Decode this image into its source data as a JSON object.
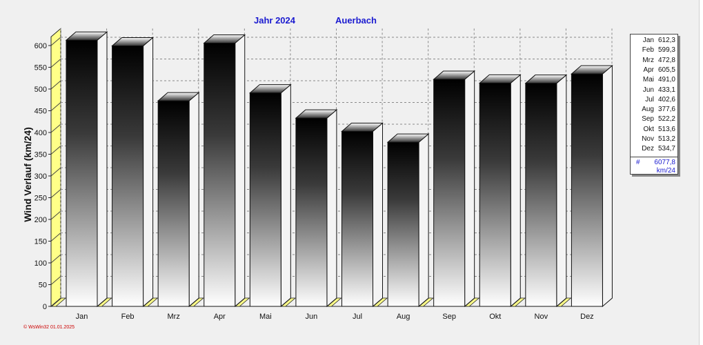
{
  "header": {
    "title_year": "Jahr  2024",
    "title_station": "Auerbach"
  },
  "footer": {
    "text": "© WsWin32  01.01.2025"
  },
  "chart_data": {
    "type": "bar",
    "title": "Jahr  2024",
    "subtitle": "Auerbach",
    "ylabel": "Wind Verlauf  (km/24)",
    "xlabel": "",
    "ylim": [
      0,
      620
    ],
    "yticks": [
      0,
      50,
      100,
      150,
      200,
      250,
      300,
      350,
      400,
      450,
      500,
      550,
      600
    ],
    "grid": true,
    "categories": [
      "Jan",
      "Feb",
      "Mrz",
      "Apr",
      "Mai",
      "Jun",
      "Jul",
      "Aug",
      "Sep",
      "Okt",
      "Nov",
      "Dez"
    ],
    "values": [
      612.3,
      599.3,
      472.8,
      605.5,
      491.0,
      433.1,
      402.6,
      377.6,
      522.2,
      513.6,
      513.2,
      534.7
    ],
    "value_labels": [
      "612,3",
      "599,3",
      "472,8",
      "605,5",
      "491,0",
      "433,1",
      "402,6",
      "377,6",
      "522,2",
      "513,6",
      "513,2",
      "534,7"
    ],
    "legend_placement": "right",
    "legend_total": "6077,8",
    "legend_total_symbol": "#",
    "legend_unit": "km/24"
  }
}
